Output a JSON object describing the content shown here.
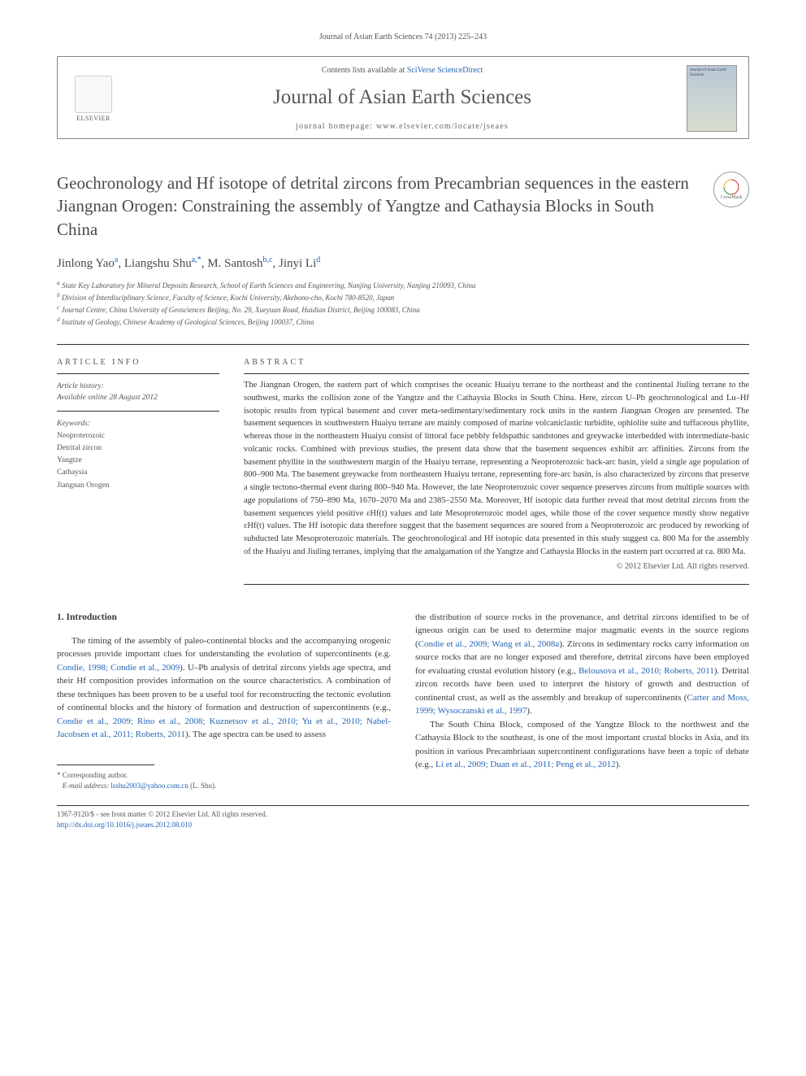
{
  "journal_ref": "Journal of Asian Earth Sciences 74 (2013) 225–243",
  "header": {
    "contents_text": "Contents lists available at ",
    "contents_link": "SciVerse ScienceDirect",
    "journal_name": "Journal of Asian Earth Sciences",
    "homepage_label": "journal homepage: ",
    "homepage_url": "www.elsevier.com/locate/jseaes",
    "publisher": "ELSEVIER",
    "cover_caption": "Journal of Asian Earth Sciences"
  },
  "crossmark": "CrossMark",
  "title": "Geochronology and Hf isotope of detrital zircons from Precambrian sequences in the eastern Jiangnan Orogen: Constraining the assembly of Yangtze and Cathaysia Blocks in South China",
  "authors_html": "Jinlong Yao<sup class='affil-link'>a</sup>, Liangshu Shu<sup class='affil-link'>a,*</sup>, M. Santosh<sup class='affil-link'>b,c</sup>, Jinyi Li<sup class='affil-link'>d</sup>",
  "affiliations": [
    "a State Key Laboratory for Mineral Deposits Research, School of Earth Sciences and Engineering, Nanjing University, Nanjing 210093, China",
    "b Division of Interdisciplinary Science, Faculty of Science, Kochi University, Akebono-cho, Kochi 780-8520, Japan",
    "c Journal Centre, China University of Geosciences Beijing, No. 29, Xueyuan Road, Haidian District, Beijing 100083, China",
    "d Institute of Geology, Chinese Academy of Geological Sciences, Beijing 100037, China"
  ],
  "info": {
    "header": "ARTICLE INFO",
    "history_label": "Article history:",
    "history_text": "Available online 28 August 2012",
    "keywords_label": "Keywords:",
    "keywords": [
      "Neoproterozoic",
      "Detrital zircon",
      "Yangtze",
      "Cathaysia",
      "Jiangnan Orogen"
    ]
  },
  "abstract": {
    "header": "ABSTRACT",
    "text": "The Jiangnan Orogen, the eastern part of which comprises the oceanic Huaiyu terrane to the northeast and the continental Jiuling terrane to the southwest, marks the collision zone of the Yangtze and the Cathaysia Blocks in South China. Here, zircon U–Pb geochronological and Lu–Hf isotopic results from typical basement and cover meta-sedimentary/sedimentary rock units in the eastern Jiangnan Orogen are presented. The basement sequences in southwestern Huaiyu terrane are mainly composed of marine volcaniclastic turbidite, ophiolite suite and tuffaceous phyllite, whereas those in the northeastern Huaiyu consist of littoral face pebbly feldspathic sandstones and greywacke interbedded with intermediate-basic volcanic rocks. Combined with previous studies, the present data show that the basement sequences exhibit arc affinities. Zircons from the basement phyllite in the southwestern margin of the Huaiyu terrane, representing a Neoproterozoic back-arc basin, yield a single age population of 800–900 Ma. The basement greywacke from northeastern Huaiyu terrane, representing fore-arc basin, is also characterized by zircons that preserve a single tectono-thermal event during 800–940 Ma. However, the late Neoproterozoic cover sequence preserves zircons from multiple sources with age populations of 750–890 Ma, 1670–2070 Ma and 2385–2550 Ma. Moreover, Hf isotopic data further reveal that most detrital zircons from the basement sequences yield positive εHf(t) values and late Mesoproterozoic model ages, while those of the cover sequence mostly show negative εHf(t) values. The Hf isotopic data therefore suggest that the basement sequences are soured from a Neoproterozoic arc produced by reworking of subducted late Mesoproterozoic materials. The geochronological and Hf isotopic data presented in this study suggest ca. 800 Ma for the assembly of the Huaiyu and Jiuling terranes, implying that the amalgamation of the Yangtze and Cathaysia Blocks in the eastern part occurred at ca. 800 Ma.",
    "copyright": "© 2012 Elsevier Ltd. All rights reserved."
  },
  "body": {
    "intro_heading": "1. Introduction",
    "col1_p1_a": "The timing of the assembly of paleo-continental blocks and the accompanying orogenic processes provide important clues for understanding the evolution of supercontinents (e.g. ",
    "col1_ref1": "Condie, 1998; Condie et al., 2009",
    "col1_p1_b": "). U–Pb analysis of detrital zircons yields age spectra, and their Hf composition provides information on the source characteristics. A combination of these techniques has been proven to be a useful tool for reconstructing the tectonic evolution of continental blocks and the history of formation and destruction of supercontinents (e.g., ",
    "col1_ref2": "Condie et al., 2009; Rino et al., 2008; Kuznetsov et al., 2010; Yu et al., 2010; Nabel-Jacobsen et al., 2011; Roberts, 2011",
    "col1_p1_c": "). The age spectra can be used to assess",
    "col2_p1_a": "the distribution of source rocks in the provenance, and detrital zircons identified to be of igneous origin can be used to determine major magmatic events in the source regions (",
    "col2_ref1": "Condie et al., 2009; Wang et al., 2008a",
    "col2_p1_b": "). Zircons in sedimentary rocks carry information on source rocks that are no longer exposed and therefore, detrital zircons have been employed for evaluating crustal evolution history (e.g., ",
    "col2_ref2": "Belousova et al., 2010; Roberts, 2011",
    "col2_p1_c": "). Detrital zircon records have been used to interpret the history of growth and destruction of continental crust, as well as the assembly and breakup of supercontinents (",
    "col2_ref3": "Carter and Moss, 1999; Wysoczanski et al., 1997",
    "col2_p1_d": ").",
    "col2_p2_a": "The South China Block, composed of the Yangtze Block to the northwest and the Cathaysia Block to the southeast, is one of the most important crustal blocks in Asia, and its position in various Precambriaan supercontinent configurations have been a topic of debate (e.g., ",
    "col2_ref4": "Li et al., 2009; Duan et al., 2011; Peng et al., 2012",
    "col2_p2_b": ")."
  },
  "footnote": {
    "corr_label": "* Corresponding author.",
    "email_label": "E-mail address: ",
    "email": "lsshu2003@yahoo.com.cn",
    "email_suffix": " (L. Shu)."
  },
  "footer": {
    "line1": "1367-9120/$ - see front matter © 2012 Elsevier Ltd. All rights reserved.",
    "doi": "http://dx.doi.org/10.1016/j.jseaes.2012.08.010"
  },
  "colors": {
    "text": "#3a3a3a",
    "muted": "#555555",
    "link": "#2365b6",
    "rule": "#333333"
  }
}
